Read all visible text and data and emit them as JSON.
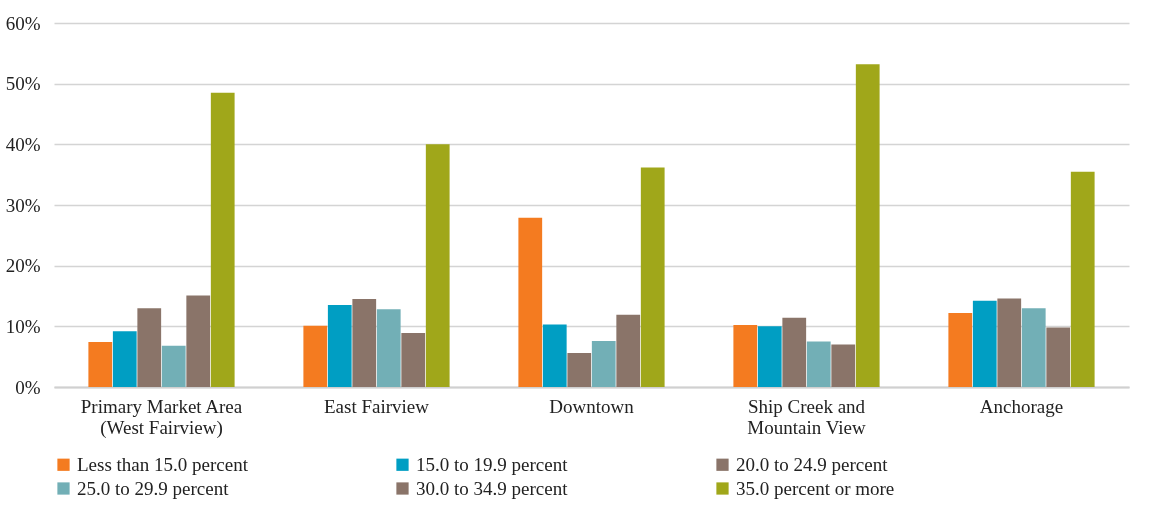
{
  "chart_data": {
    "type": "bar",
    "categories": [
      "Primary Market Area\n(West Fairview)",
      "East Fairview",
      "Downtown",
      "Ship Creek and\nMountain View",
      "Anchorage"
    ],
    "series": [
      {
        "name": "Less than 15.0 percent",
        "color": "#f47b20",
        "values": [
          7.4,
          10.1,
          27.9,
          10.2,
          12.2
        ]
      },
      {
        "name": "15.0 to 19.9 percent",
        "color": "#009ec3",
        "values": [
          9.2,
          13.5,
          10.3,
          10.0,
          14.2
        ]
      },
      {
        "name": "20.0 to 24.9 percent",
        "color": "#8a7469",
        "values": [
          13.0,
          14.5,
          5.6,
          11.4,
          14.6
        ]
      },
      {
        "name": "25.0 to 29.9 percent",
        "color": "#72afb6",
        "values": [
          6.8,
          12.8,
          7.6,
          7.5,
          13.0
        ]
      },
      {
        "name": "30.0 to 34.9 percent",
        "color": "#8a7469",
        "values": [
          15.1,
          8.9,
          11.9,
          7.0,
          9.8
        ]
      },
      {
        "name": "35.0 percent or more",
        "color": "#a0a71a",
        "values": [
          48.5,
          40.0,
          36.2,
          53.2,
          35.5
        ]
      }
    ],
    "ylim": [
      0,
      60
    ],
    "yticks": [
      {
        "value": 0,
        "label": "0%"
      },
      {
        "value": 10,
        "label": "10%"
      },
      {
        "value": 20,
        "label": "20%"
      },
      {
        "value": 30,
        "label": "30%"
      },
      {
        "value": 40,
        "label": "40%"
      },
      {
        "value": 50,
        "label": "50%"
      },
      {
        "value": 60,
        "label": "60%"
      }
    ],
    "grid": "y",
    "legend": "bottom"
  }
}
